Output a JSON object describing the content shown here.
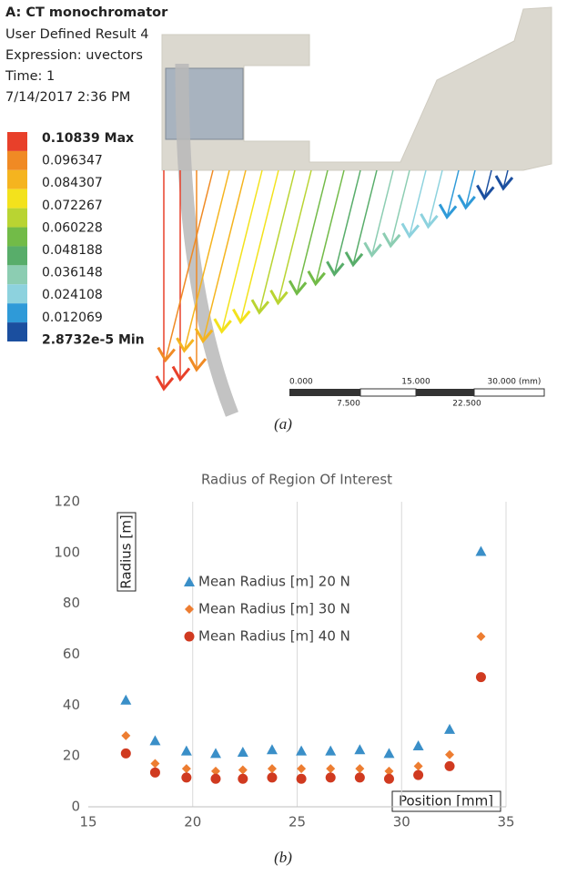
{
  "panel_a": {
    "title": "A: CT monochromator",
    "subtitle": "User Defined Result 4",
    "expression": "Expression: uvectors",
    "time": "Time: 1",
    "date": "7/14/2017 2:36 PM",
    "legend_labels": [
      "0.10839 Max",
      "0.096347",
      "0.084307",
      "0.072267",
      "0.060228",
      "0.048188",
      "0.036148",
      "0.024108",
      "0.012069",
      "2.8732e-5 Min"
    ],
    "legend_colors": [
      "#e8402a",
      "#f08a24",
      "#f5b41f",
      "#f3e21c",
      "#b9d432",
      "#72bb48",
      "#58ad6a",
      "#8ccdb2",
      "#8dd2de",
      "#2f9ad8",
      "#1b4f9f"
    ],
    "scale_top": [
      "0.000",
      "15.000",
      "30.000 (mm)"
    ],
    "scale_bottom": [
      "7.500",
      "22.500"
    ],
    "caption": "(a)"
  },
  "chart_data": {
    "type": "scatter",
    "title": "Radius of Region Of Interest",
    "y_label": "Radius [m]",
    "x_label": "Position [mm]",
    "x": [
      16.8,
      18.2,
      19.7,
      21.1,
      22.4,
      23.8,
      25.2,
      26.6,
      28.0,
      29.4,
      30.8,
      32.3,
      33.8
    ],
    "series": [
      {
        "name": "Mean Radius [m] 20 N",
        "color": "#3a8fc8",
        "marker": "triangle",
        "values": [
          42,
          26,
          22,
          21,
          21.5,
          22.5,
          22,
          22,
          22.5,
          21,
          24,
          30.5,
          100.5
        ]
      },
      {
        "name": "Mean Radius [m] 30 N",
        "color": "#ed7d31",
        "marker": "diamond",
        "values": [
          28,
          17,
          15,
          14,
          14.5,
          15,
          15,
          15,
          15,
          14,
          16,
          20.5,
          67
        ]
      },
      {
        "name": "Mean Radius [m] 40 N",
        "color": "#d03a20",
        "marker": "circle",
        "values": [
          21,
          13.5,
          11.5,
          11,
          11,
          11.5,
          11,
          11.5,
          11.5,
          11,
          12.5,
          16,
          51
        ]
      }
    ],
    "xlim": [
      15,
      35
    ],
    "xticks": [
      15,
      20,
      25,
      30,
      35
    ],
    "ylim": [
      0,
      120
    ],
    "yticks": [
      0,
      20,
      40,
      60,
      80,
      100,
      120
    ],
    "grid": "x"
  },
  "caption_b": "(b)"
}
